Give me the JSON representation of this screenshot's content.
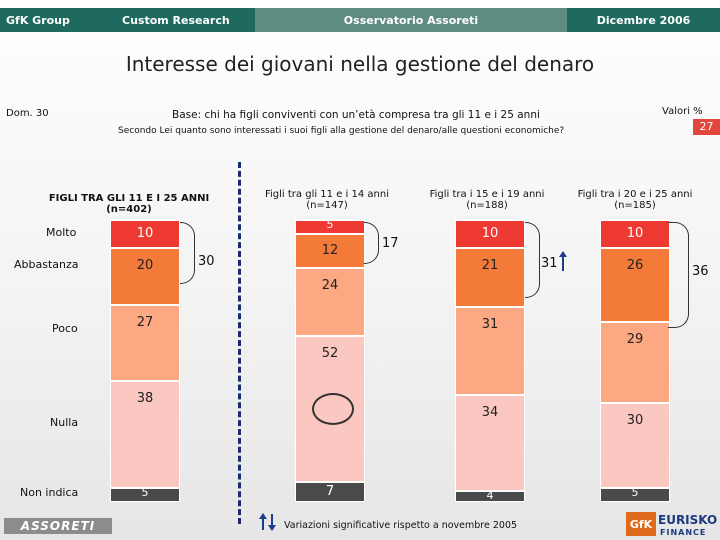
{
  "header": {
    "gfk_group": "GfK Group",
    "custom_research": "Custom Research",
    "osservatorio": "Osservatorio Assoreti",
    "date": "Dicembre 2006"
  },
  "title": "Interesse dei giovani nella gestione del denaro",
  "question_code": "Dom. 30",
  "base_text": "Base: chi ha figli conviventi con un’età compresa tra gli 11 e i 25 anni",
  "question_text": "Secondo Lei quanto sono interessati i suoi figli alla gestione del denaro/alle questioni economiche?",
  "valori": "Valori %",
  "valori_badge": "27",
  "chart_data": {
    "type": "bar",
    "stacked": true,
    "unit": "%",
    "categories": [
      "Molto",
      "Abbastanza",
      "Poco",
      "Nulla",
      "Non indica"
    ],
    "colors": [
      "#ee3a33",
      "#f37a38",
      "#fca882",
      "#fac8c1",
      "#4a4a4a"
    ],
    "series": [
      {
        "name": "FIGLI TRA GLI 11 E I 25 ANNI",
        "n": "(n=402)",
        "values": [
          10,
          20,
          27,
          38,
          5
        ],
        "labels": [
          "10",
          "20",
          "27",
          "38",
          "5"
        ],
        "total_top2": "30"
      },
      {
        "name": "Figli tra gli 11 e i 14 anni",
        "n": "(n=147)",
        "values": [
          5,
          12,
          24,
          52,
          7
        ],
        "labels": [
          "5",
          "12",
          "24",
          "52",
          "7"
        ],
        "total_top2": "17"
      },
      {
        "name": "Figli tra i 15 e i 19 anni",
        "n": "(n=188)",
        "values": [
          10,
          21,
          31,
          34,
          4
        ],
        "labels": [
          "10",
          "21",
          "31",
          "34",
          "4"
        ],
        "total_top2": "31"
      },
      {
        "name": "Figli tra i 20 e i 25 anni",
        "n": "(n=185)",
        "values": [
          10,
          26,
          29,
          30,
          5
        ],
        "labels": [
          "10",
          "26",
          "29",
          "30",
          "5"
        ],
        "total_top2": "36"
      }
    ]
  },
  "footer": {
    "legend_text": "Variazioni significative rispetto a novembre 2005",
    "logo_assoreti": "ASSORETI",
    "logo_gfk": "GfK",
    "logo_eurisko": "EURISKO",
    "logo_finance": "FINANCE"
  }
}
